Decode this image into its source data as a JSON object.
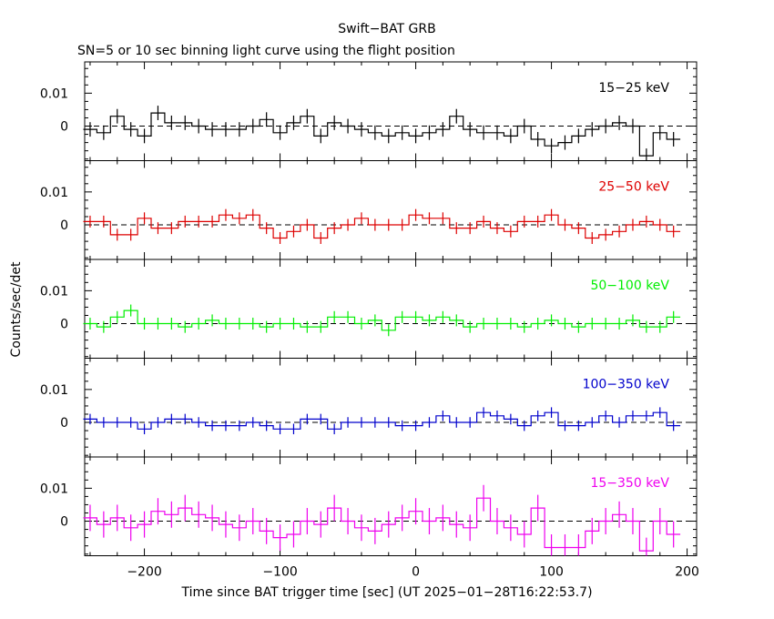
{
  "chart_data": {
    "type": "line",
    "title": "Swift−BAT GRB",
    "subtitle": "SN=5 or 10 sec binning light curve using the flight position",
    "xlabel": "Time since BAT trigger time [sec] (UT 2025−01−28T16:22:53.7)",
    "ylabel": "Counts/sec/det",
    "xlim": [
      -244,
      207
    ],
    "ylim": [
      -0.0105,
      0.0195
    ],
    "x_ticks": [
      -200,
      -100,
      0,
      100,
      200
    ],
    "x_tick_labels": [
      "−200",
      "−100",
      "0",
      "100",
      "200"
    ],
    "y_ticks": [
      0,
      0.01
    ],
    "y_tick_labels": [
      "0",
      "0.01"
    ],
    "bin_width_sec": 10,
    "x": [
      -240,
      -230,
      -220,
      -210,
      -200,
      -190,
      -180,
      -170,
      -160,
      -150,
      -140,
      -130,
      -120,
      -110,
      -100,
      -90,
      -80,
      -70,
      -60,
      -50,
      -40,
      -30,
      -20,
      -10,
      0,
      10,
      20,
      30,
      40,
      50,
      60,
      70,
      80,
      90,
      100,
      110,
      120,
      130,
      140,
      150,
      160,
      170,
      180,
      190
    ],
    "series": [
      {
        "name": "15−25 keV",
        "color": "#000000",
        "err": 0.0022,
        "values": [
          -0.001,
          -0.002,
          0.003,
          -0.001,
          -0.003,
          0.004,
          0.001,
          0.001,
          0.0,
          -0.001,
          -0.001,
          -0.001,
          0.0,
          0.002,
          -0.002,
          0.001,
          0.003,
          -0.003,
          0.001,
          0.0,
          -0.001,
          -0.002,
          -0.003,
          -0.002,
          -0.003,
          -0.002,
          -0.001,
          0.003,
          -0.001,
          -0.002,
          -0.002,
          -0.003,
          0.0,
          -0.004,
          -0.006,
          -0.005,
          -0.003,
          -0.001,
          0.0,
          0.001,
          0.0,
          -0.009,
          -0.002,
          -0.004
        ]
      },
      {
        "name": "25−50 keV",
        "color": "#dd0000",
        "err": 0.0018,
        "values": [
          0.001,
          0.001,
          -0.003,
          -0.003,
          0.002,
          -0.001,
          -0.001,
          0.001,
          0.001,
          0.001,
          0.003,
          0.002,
          0.003,
          -0.001,
          -0.004,
          -0.002,
          0.0,
          -0.004,
          -0.001,
          0.0,
          0.002,
          0.0,
          0.0,
          0.0,
          0.003,
          0.002,
          0.002,
          -0.001,
          -0.001,
          0.001,
          -0.001,
          -0.002,
          0.001,
          0.001,
          0.003,
          0.0,
          -0.001,
          -0.004,
          -0.003,
          -0.002,
          0.0,
          0.001,
          0.0,
          -0.002
        ]
      },
      {
        "name": "50−100 keV",
        "color": "#00ee00",
        "err": 0.0018,
        "values": [
          0.0,
          -0.001,
          0.002,
          0.004,
          0.0,
          0.0,
          0.0,
          -0.001,
          0.0,
          0.001,
          0.0,
          0.0,
          0.0,
          -0.001,
          0.0,
          0.0,
          -0.001,
          -0.001,
          0.002,
          0.002,
          0.0,
          0.001,
          -0.002,
          0.002,
          0.002,
          0.001,
          0.002,
          0.001,
          -0.001,
          0.0,
          0.0,
          0.0,
          -0.001,
          0.0,
          0.001,
          0.0,
          -0.001,
          0.0,
          0.0,
          0.0,
          0.001,
          -0.001,
          -0.001,
          0.002
        ]
      },
      {
        "name": "100−350 keV",
        "color": "#0000cc",
        "err": 0.0016,
        "values": [
          0.001,
          0.0,
          0.0,
          0.0,
          -0.002,
          0.0,
          0.001,
          0.001,
          0.0,
          -0.001,
          -0.001,
          -0.001,
          0.0,
          -0.001,
          -0.002,
          -0.002,
          0.001,
          0.001,
          -0.002,
          0.0,
          0.0,
          0.0,
          0.0,
          -0.001,
          -0.001,
          0.0,
          0.002,
          0.0,
          0.0,
          0.003,
          0.002,
          0.001,
          -0.001,
          0.002,
          0.003,
          -0.001,
          -0.001,
          0.0,
          0.002,
          0.0,
          0.002,
          0.002,
          0.003,
          -0.001
        ]
      },
      {
        "name": "15−350 keV",
        "color": "#ee00ee",
        "err": 0.004,
        "values": [
          0.001,
          -0.001,
          0.001,
          -0.002,
          -0.001,
          0.003,
          0.002,
          0.004,
          0.002,
          0.001,
          -0.001,
          -0.002,
          0.0,
          -0.003,
          -0.005,
          -0.004,
          0.0,
          -0.001,
          0.004,
          0.0,
          -0.002,
          -0.003,
          -0.001,
          0.001,
          0.003,
          0.0,
          0.001,
          -0.001,
          -0.002,
          0.007,
          0.0,
          -0.002,
          -0.004,
          0.004,
          -0.008,
          -0.008,
          -0.008,
          -0.003,
          0.0,
          0.002,
          0.0,
          -0.009,
          0.0,
          -0.004
        ]
      }
    ]
  }
}
